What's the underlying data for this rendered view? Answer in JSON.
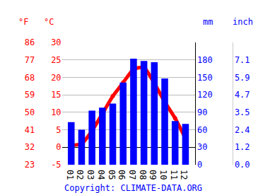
{
  "chart_data": {
    "type": "bar",
    "categories": [
      "01",
      "02",
      "03",
      "04",
      "05",
      "06",
      "07",
      "08",
      "09",
      "10",
      "11",
      "12"
    ],
    "series": [
      {
        "type": "bar",
        "axis": "y2",
        "color": "#0000ff",
        "values": [
          73,
          60,
          93,
          98,
          105,
          141,
          182,
          178,
          176,
          148,
          75,
          70
        ]
      },
      {
        "type": "line",
        "color": "#ff0000",
        "marker": "circle",
        "line_style": "solid",
        "values": [
          0.6,
          1.0,
          4.7,
          9.6,
          14.6,
          18.5,
          22.3,
          22.8,
          18.3,
          13.0,
          8.3,
          2.5
        ]
      }
    ],
    "ylabel": "°C",
    "ylim": [
      -5,
      30
    ],
    "yticks": [
      -5,
      0,
      5,
      10,
      15,
      20,
      25,
      30
    ],
    "y2label": "mm",
    "y2lim": [
      0,
      210
    ],
    "y2ticks": [
      0,
      30,
      60,
      90,
      120,
      150,
      180
    ],
    "y3label": "°F",
    "y3lim": [
      23,
      86
    ],
    "y3ticks": [
      23,
      32,
      41,
      50,
      59,
      68,
      77,
      86
    ],
    "y4label": "inch",
    "y4lim": [
      0,
      8.268
    ],
    "y4ticks": [
      {
        "value": 0,
        "label": "0.0"
      },
      {
        "value": 1.181,
        "label": "1.2"
      },
      {
        "value": 2.362,
        "label": "2.4"
      },
      {
        "value": 3.543,
        "label": "3.5"
      },
      {
        "value": 4.724,
        "label": "4.7"
      },
      {
        "value": 5.906,
        "label": "5.9"
      },
      {
        "value": 7.087,
        "label": "7.1"
      }
    ],
    "annotations": [
      "Copyright: CLIMATE-DATA.ORG"
    ],
    "grid": true
  }
}
